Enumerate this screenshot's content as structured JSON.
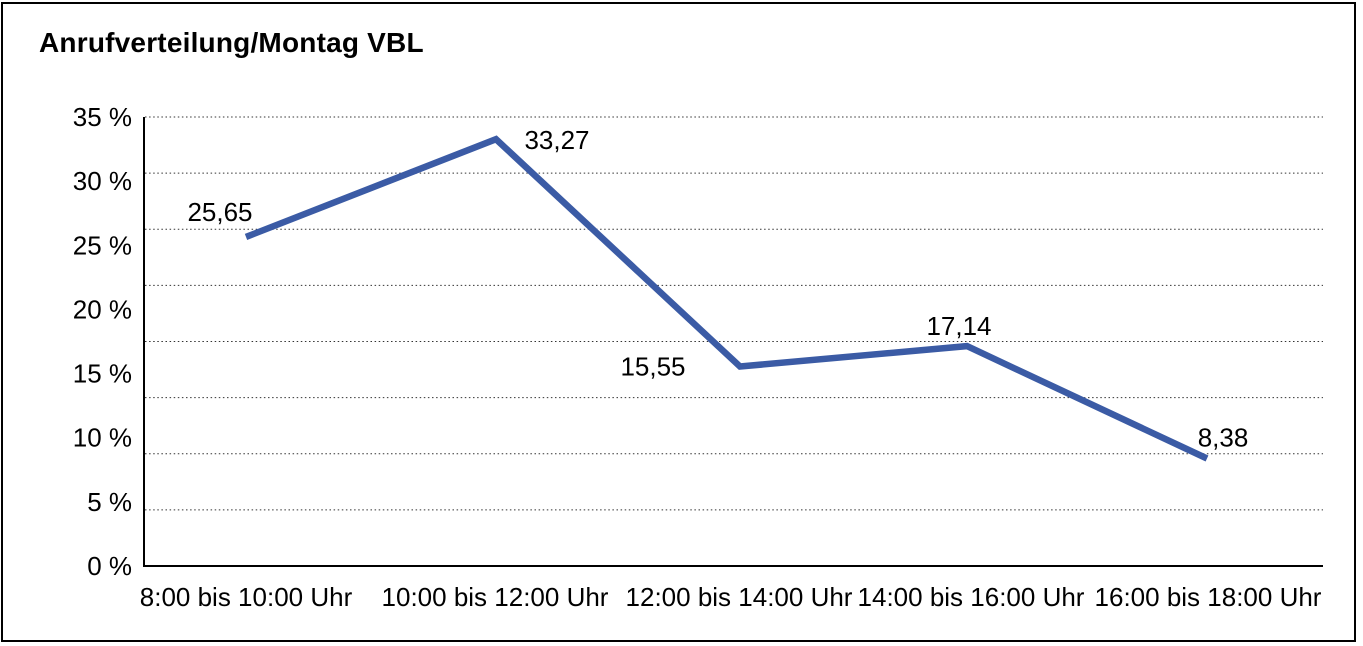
{
  "chart_data": {
    "type": "line",
    "title": "Anrufverteilung/Montag VBL",
    "categories": [
      "8:00 bis 10:00 Uhr",
      "10:00 bis 12:00 Uhr",
      "12:00 bis 14:00 Uhr",
      "14:00 bis 16:00 Uhr",
      "16:00 bis 18:00 Uhr"
    ],
    "series": [
      {
        "name": "Anrufverteilung Montag VBL",
        "values": [
          25.65,
          33.27,
          15.55,
          17.14,
          8.38
        ]
      }
    ],
    "value_labels": [
      "25,65",
      "33,27",
      "15,55",
      "17,14",
      "8,38"
    ],
    "y_axis": {
      "min": 0,
      "max": 35,
      "unit": "%",
      "tick_labels": [
        "35 %",
        "30 %",
        "25 %",
        "20 %",
        "15 %",
        "10 %",
        "5 %",
        "0 %"
      ]
    },
    "xlabel": "",
    "ylabel": "",
    "legend": "none",
    "grid": "horizontal-dotted",
    "colors": {
      "line": "#3B5BA5",
      "text": "#000000",
      "gridline": "#333333",
      "axis": "#000000",
      "frame_border": "#000000",
      "background": "#FFFFFF"
    }
  }
}
